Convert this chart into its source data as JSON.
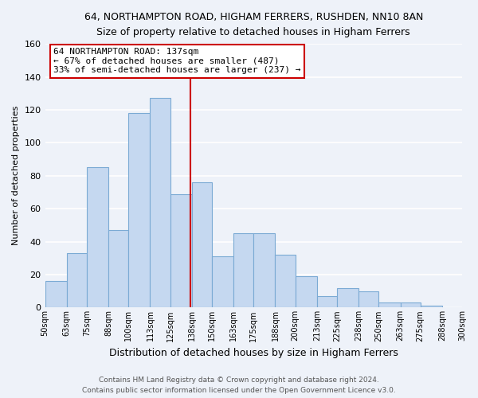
{
  "title": "64, NORTHAMPTON ROAD, HIGHAM FERRERS, RUSHDEN, NN10 8AN",
  "subtitle": "Size of property relative to detached houses in Higham Ferrers",
  "xlabel": "Distribution of detached houses by size in Higham Ferrers",
  "ylabel": "Number of detached properties",
  "footnote1": "Contains HM Land Registry data © Crown copyright and database right 2024.",
  "footnote2": "Contains public sector information licensed under the Open Government Licence v3.0.",
  "bar_edges": [
    50,
    63,
    75,
    88,
    100,
    113,
    125,
    138,
    150,
    163,
    175,
    188,
    200,
    213,
    225,
    238,
    250,
    263,
    275,
    288,
    300
  ],
  "bar_heights": [
    16,
    33,
    85,
    47,
    118,
    127,
    69,
    76,
    31,
    45,
    45,
    32,
    19,
    7,
    12,
    10,
    3,
    3,
    1,
    0
  ],
  "bar_color": "#c5d8f0",
  "bar_edge_color": "#7baad4",
  "vline_x": 137,
  "vline_color": "#cc0000",
  "ylim": [
    0,
    160
  ],
  "yticks": [
    0,
    20,
    40,
    60,
    80,
    100,
    120,
    140,
    160
  ],
  "annotation_title": "64 NORTHAMPTON ROAD: 137sqm",
  "annotation_line1": "← 67% of detached houses are smaller (487)",
  "annotation_line2": "33% of semi-detached houses are larger (237) →",
  "annotation_box_color": "#ffffff",
  "annotation_box_edge": "#cc0000",
  "tick_labels": [
    "50sqm",
    "63sqm",
    "75sqm",
    "88sqm",
    "100sqm",
    "113sqm",
    "125sqm",
    "138sqm",
    "150sqm",
    "163sqm",
    "175sqm",
    "188sqm",
    "200sqm",
    "213sqm",
    "225sqm",
    "238sqm",
    "250sqm",
    "263sqm",
    "275sqm",
    "288sqm",
    "300sqm"
  ],
  "background_color": "#eef2f9",
  "grid_color": "#ffffff"
}
